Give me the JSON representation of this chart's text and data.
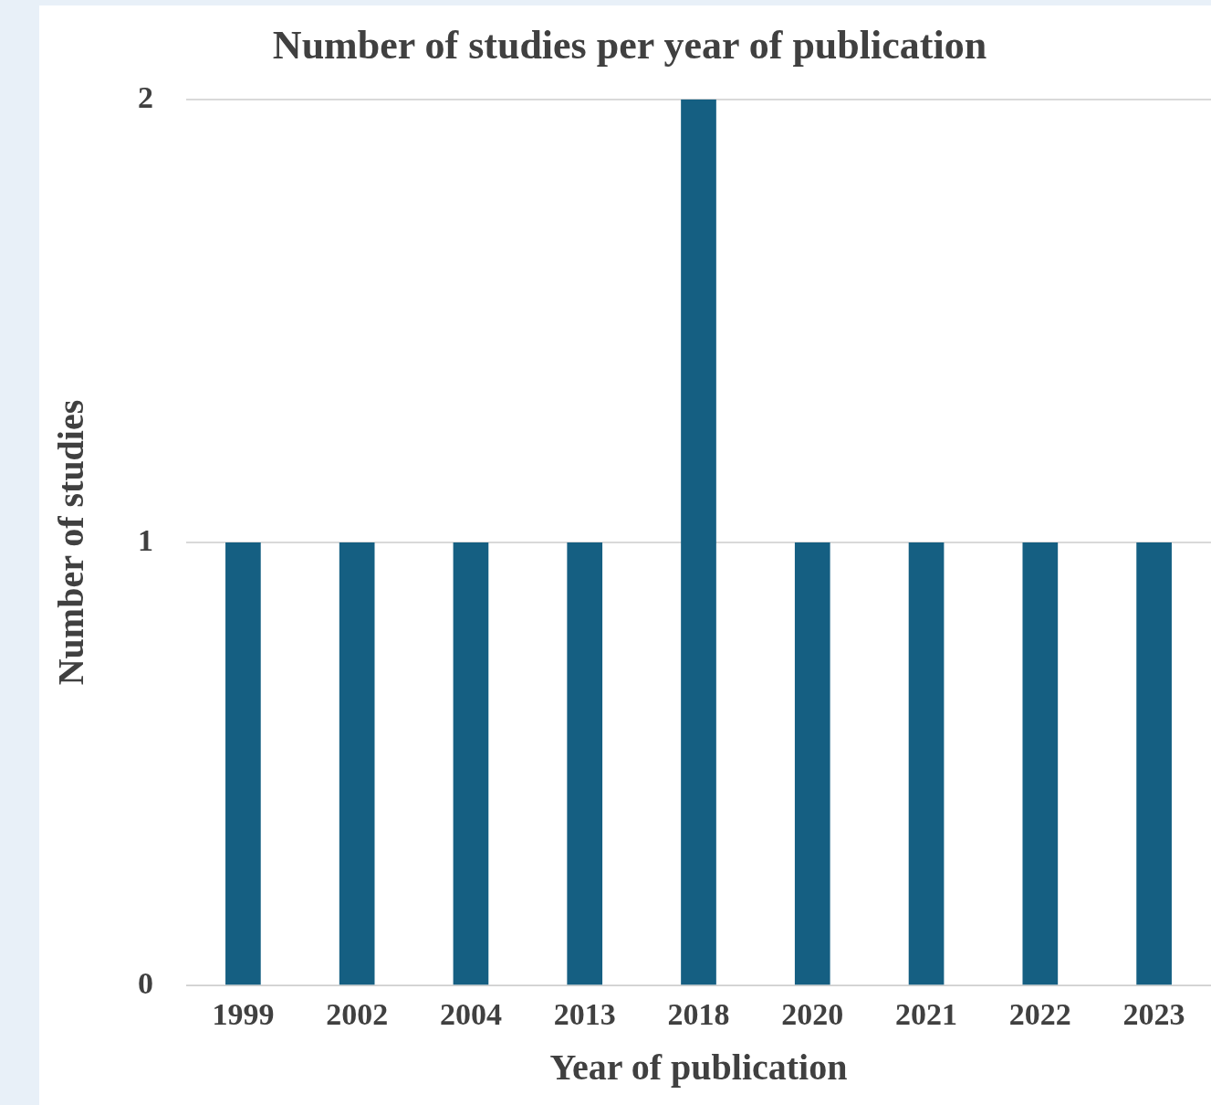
{
  "chart_data": {
    "type": "bar",
    "title": "Number of studies per year of publication",
    "xlabel": "Year of publication",
    "ylabel": "Number of studies",
    "categories": [
      "1999",
      "2002",
      "2004",
      "2013",
      "2018",
      "2020",
      "2021",
      "2022",
      "2023"
    ],
    "values": [
      1,
      1,
      1,
      1,
      2,
      1,
      1,
      1,
      1
    ],
    "color": "#155f82",
    "ylim": [
      0,
      2
    ],
    "yticks": [
      0,
      1,
      2
    ],
    "grid": "y",
    "legend": false
  }
}
